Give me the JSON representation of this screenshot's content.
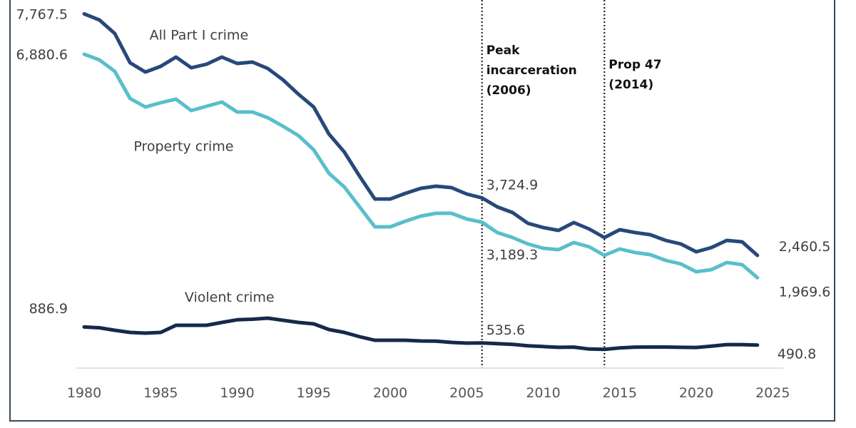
{
  "chart_data": {
    "type": "line",
    "title": "",
    "xlabel": "",
    "ylabel": "",
    "xlim": [
      1980,
      2025
    ],
    "ylim": [
      0,
      8000
    ],
    "grid": false,
    "legend": "none (series labeled inline)",
    "x_ticks": [
      1980,
      1985,
      1990,
      1995,
      2000,
      2005,
      2010,
      2015,
      2020,
      2025
    ],
    "x_tick_labels": [
      "1980",
      "1985",
      "1990",
      "1995",
      "2000",
      "2005",
      "2010",
      "2015",
      "2020",
      "2025"
    ],
    "x": [
      1980,
      1981,
      1982,
      1983,
      1984,
      1985,
      1986,
      1987,
      1988,
      1989,
      1990,
      1991,
      1992,
      1993,
      1994,
      1995,
      1996,
      1997,
      1998,
      1999,
      2000,
      2001,
      2002,
      2003,
      2004,
      2005,
      2006,
      2007,
      2008,
      2009,
      2010,
      2011,
      2012,
      2013,
      2014,
      2015,
      2016,
      2017,
      2018,
      2019,
      2020,
      2021,
      2022,
      2023,
      2024
    ],
    "series": [
      {
        "name": "All Part I crime",
        "color": "#27497a",
        "values": [
          7767.5,
          7633,
          7335,
          6693,
          6489,
          6614,
          6818,
          6583,
          6661,
          6818,
          6677,
          6708,
          6567,
          6317,
          6003,
          5721,
          5125,
          4734,
          4201,
          3699,
          3699,
          3824,
          3934,
          3981,
          3950,
          3809,
          3724.9,
          3527,
          3401,
          3166,
          3072,
          3009,
          3182,
          3041,
          2853,
          3025,
          2962,
          2915,
          2790,
          2712,
          2539,
          2633,
          2790,
          2759,
          2460.5
        ]
      },
      {
        "name": "Property crime",
        "color": "#58bfcb",
        "values": [
          6880.6,
          6755,
          6505,
          5909,
          5721,
          5815,
          5893,
          5643,
          5737,
          5831,
          5611,
          5611,
          5486,
          5298,
          5094,
          4781,
          4263,
          3966,
          3527,
          3088,
          3088,
          3213,
          3323,
          3386,
          3386,
          3260,
          3189.3,
          2962,
          2853,
          2712,
          2618,
          2586,
          2743,
          2649,
          2461,
          2602,
          2524,
          2476,
          2351,
          2273,
          2100,
          2147,
          2304,
          2257,
          1969.6
        ]
      },
      {
        "name": "Violent crime",
        "color": "#16294a",
        "values": [
          886.9,
          870,
          815,
          768,
          752,
          768,
          925,
          925,
          925,
          987,
          1045,
          1058,
          1081,
          1034,
          987,
          956,
          831,
          768,
          674,
          596,
          596,
          596,
          580,
          575,
          549,
          533,
          535.6,
          520,
          505,
          473,
          458,
          441,
          445,
          403,
          396,
          426,
          445,
          447,
          447,
          441,
          437,
          466,
          500,
          500,
          490.8
        ]
      }
    ],
    "series_labels": [
      {
        "text": "All Part I crime",
        "series": 0,
        "x": 1987.5,
        "y": 7200
      },
      {
        "text": "Property crime",
        "series": 1,
        "x": 1986.5,
        "y": 4760
      },
      {
        "text": "Violent crime",
        "series": 2,
        "x": 1989.5,
        "y": 1440
      }
    ],
    "value_labels": [
      {
        "text": "7,767.5",
        "x": 1980,
        "y": 7767.5,
        "position": "left"
      },
      {
        "text": "6,880.6",
        "x": 1980,
        "y": 6880.6,
        "position": "left"
      },
      {
        "text": "886.9",
        "x": 1980,
        "y": 1300,
        "position": "left"
      },
      {
        "text": "3,724.9",
        "x": 2006,
        "y": 3724.9,
        "position": "above-right"
      },
      {
        "text": "3,189.3",
        "x": 2006,
        "y": 3189.3,
        "position": "below-right"
      },
      {
        "text": "535.6",
        "x": 2006,
        "y": 535.6,
        "position": "above-right"
      },
      {
        "text": "2,460.5",
        "x": 2024,
        "y": 2460.5,
        "position": "right"
      },
      {
        "text": "1,969.6",
        "x": 2024,
        "y": 1969.6,
        "position": "right"
      },
      {
        "text": "490.8",
        "x": 2024,
        "y": 490.8,
        "position": "right-below"
      }
    ],
    "annotations": [
      {
        "x": 2006,
        "lines": [
          "Peak",
          "incarceration",
          "(2006)"
        ],
        "style": "dotted-vertical"
      },
      {
        "x": 2014,
        "lines": [
          "Prop 47",
          "(2014)"
        ],
        "style": "dotted-vertical"
      }
    ]
  }
}
